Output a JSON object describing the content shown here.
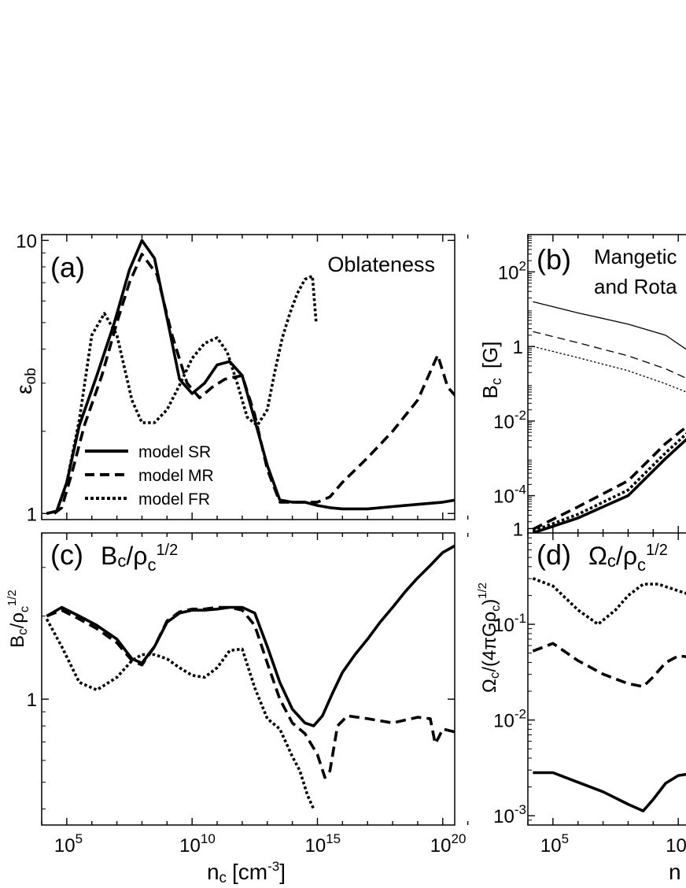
{
  "figure": {
    "xlabel": "n",
    "xlabel_sub": "c",
    "xlabel_unit": "[cm",
    "xlabel_unit_sup": "-3",
    "xlabel_unit_close": "]",
    "xlabel_right_visible": "n",
    "x_tick_base": "10",
    "x_tick_exps": [
      "5",
      "10",
      "15",
      "20"
    ],
    "x_tick_exps_right": [
      "5",
      "10"
    ]
  },
  "legend": [
    {
      "label": "model SR",
      "style": "solid"
    },
    {
      "label": "model MR",
      "style": "dashed"
    },
    {
      "label": "model FR",
      "style": "dotted"
    }
  ],
  "chart_data": [
    {
      "panel": "a",
      "type": "line",
      "panel_label": "(a)",
      "title": "Oblateness",
      "ylabel": "ε",
      "ylabel_sub": "ob",
      "xscale": "log",
      "yscale": "log",
      "xlim": [
        10000.0,
        3e+20
      ],
      "ylim": [
        0.95,
        10.5
      ],
      "yticks": [
        {
          "v": 1,
          "label": "1"
        },
        {
          "v": 10,
          "label": "10"
        }
      ],
      "series": [
        {
          "name": "model SR",
          "style": "solid",
          "logx": [
            4.2,
            4.6,
            5.0,
            5.5,
            6.2,
            6.9,
            7.5,
            8.0,
            8.5,
            9.0,
            9.5,
            10.0,
            10.5,
            11.0,
            11.5,
            12.0,
            12.5,
            13.0,
            13.5,
            14.0,
            14.5,
            15.0,
            15.5,
            16.0,
            17.0,
            18.0,
            19.0,
            20.0,
            20.5
          ],
          "y": [
            1.0,
            1.02,
            1.3,
            2.1,
            3.2,
            5.0,
            7.8,
            10.0,
            8.6,
            5.2,
            3.1,
            2.75,
            3.0,
            3.5,
            3.6,
            3.2,
            2.2,
            1.5,
            1.12,
            1.1,
            1.1,
            1.07,
            1.05,
            1.04,
            1.04,
            1.06,
            1.08,
            1.1,
            1.12
          ]
        },
        {
          "name": "model MR",
          "style": "dashed",
          "logx": [
            4.5,
            4.8,
            5.2,
            5.7,
            6.4,
            7.0,
            7.5,
            8.0,
            8.6,
            9.2,
            9.8,
            10.3,
            10.8,
            11.3,
            12.0,
            12.5,
            13.0,
            13.5,
            14.0,
            14.5,
            15.0,
            15.5,
            16.0,
            17.0,
            18.0,
            19.0,
            19.5,
            19.8,
            20.2,
            20.5
          ],
          "y": [
            1.0,
            1.05,
            1.4,
            2.1,
            3.2,
            5.0,
            7.0,
            8.9,
            7.5,
            4.5,
            3.0,
            2.65,
            2.9,
            3.1,
            3.2,
            2.3,
            1.45,
            1.1,
            1.1,
            1.1,
            1.1,
            1.15,
            1.3,
            1.6,
            2.0,
            2.6,
            3.3,
            3.8,
            2.9,
            2.7
          ]
        },
        {
          "name": "model FR",
          "style": "dotted",
          "logx": [
            4.2,
            4.6,
            5.0,
            5.5,
            6.0,
            6.5,
            7.0,
            7.6,
            8.0,
            8.5,
            9.0,
            9.5,
            10.0,
            10.5,
            11.0,
            11.4,
            11.8,
            12.2,
            12.6,
            13.0,
            13.3,
            13.6,
            13.9,
            14.2,
            14.5,
            14.8,
            14.95
          ],
          "y": [
            1.0,
            1.02,
            1.3,
            2.2,
            4.5,
            5.4,
            4.5,
            2.6,
            2.15,
            2.15,
            2.4,
            2.95,
            3.7,
            4.2,
            4.4,
            3.9,
            3.0,
            2.25,
            2.1,
            2.4,
            3.3,
            4.4,
            5.4,
            6.4,
            7.2,
            7.4,
            5.0
          ]
        }
      ]
    },
    {
      "panel": "b",
      "type": "line",
      "panel_label": "(b)",
      "title": "Mangetic Field Strength",
      "title_visible_line1": "Mangetic",
      "title_visible_line2": "and Rota",
      "ylabel": "B",
      "ylabel_sub": "c",
      "ylabel_unit": "[G]",
      "xscale": "log",
      "yscale": "log",
      "xlim": [
        10000.0,
        3e+20
      ],
      "ylim": [
        1e-05,
        1000.0
      ],
      "yticks": [
        {
          "v": 0.0001,
          "base": "10",
          "exp": "-4"
        },
        {
          "v": 0.01,
          "base": "10",
          "exp": "-2"
        },
        {
          "v": 1,
          "base": "1",
          "exp": ""
        },
        {
          "v": 100,
          "base": "10",
          "exp": "2"
        }
      ],
      "series": [
        {
          "name": "SR thin solid",
          "style": "thin-solid",
          "logx": [
            4.2,
            6,
            8,
            9.5,
            10.8,
            11.5
          ],
          "log10y": [
            1.2,
            0.9,
            0.6,
            0.3,
            -0.3,
            -0.6
          ]
        },
        {
          "name": "MR thin dashed",
          "style": "thin-dashed",
          "logx": [
            4.2,
            6,
            8,
            9.5,
            10.8,
            11.5
          ],
          "log10y": [
            0.4,
            0.1,
            -0.25,
            -0.6,
            -1.0,
            -1.25
          ]
        },
        {
          "name": "FR thin dotted",
          "style": "thin-dotted",
          "logx": [
            4.2,
            6,
            8,
            9.5,
            10.8,
            11.5
          ],
          "log10y": [
            0.0,
            -0.3,
            -0.65,
            -1.0,
            -1.35,
            -1.6
          ]
        },
        {
          "name": "SR thick solid",
          "style": "solid",
          "logx": [
            4.2,
            6,
            8,
            9.5,
            10.8,
            11.5
          ],
          "log10y": [
            -5.0,
            -4.6,
            -4.0,
            -3.0,
            -2.2,
            -1.8
          ]
        },
        {
          "name": "MR thick dashed",
          "style": "dashed",
          "logx": [
            4.2,
            6,
            8,
            9.5,
            10.8,
            11.5
          ],
          "log10y": [
            -4.9,
            -4.3,
            -3.6,
            -2.6,
            -1.9,
            -1.7
          ]
        },
        {
          "name": "FR thick dotted",
          "style": "dotted",
          "logx": [
            4.2,
            6,
            8,
            9.5,
            10.8,
            11.5
          ],
          "log10y": [
            -4.95,
            -4.5,
            -3.85,
            -2.85,
            -2.05,
            -1.75
          ]
        }
      ]
    },
    {
      "panel": "c",
      "type": "line",
      "panel_label": "(c)",
      "title": "B",
      "title_sub": "c",
      "title_mid": "/ρ",
      "title_sub2": "c",
      "title_sup": "1/2",
      "ylabel": "B",
      "ylabel_sub": "c",
      "ylabel_mid": "/ρ",
      "ylabel_sub2": "c",
      "ylabel_sup": "1/2",
      "xscale": "log",
      "yscale": "log",
      "xlim": [
        10000.0,
        3e+20
      ],
      "ylim": [
        0.35,
        4.0
      ],
      "yticks": [
        {
          "v": 1,
          "label": "1"
        }
      ],
      "series": [
        {
          "name": "model SR",
          "style": "solid",
          "logx": [
            4.2,
            4.8,
            5.5,
            6.2,
            7.0,
            7.6,
            8.0,
            8.5,
            9.0,
            9.5,
            10.0,
            10.5,
            11.0,
            11.5,
            12.0,
            12.5,
            13.0,
            13.5,
            14.0,
            14.5,
            14.85,
            15.2,
            15.6,
            16.0,
            16.5,
            17.0,
            17.5,
            18.0,
            18.5,
            19.0,
            19.5,
            20.0,
            20.5
          ],
          "y": [
            2.0,
            2.15,
            2.0,
            1.85,
            1.65,
            1.4,
            1.35,
            1.55,
            1.9,
            2.05,
            2.1,
            2.1,
            2.12,
            2.15,
            2.15,
            2.05,
            1.55,
            1.15,
            0.92,
            0.82,
            0.8,
            0.87,
            1.05,
            1.25,
            1.45,
            1.65,
            1.9,
            2.15,
            2.45,
            2.75,
            3.05,
            3.4,
            3.6
          ]
        },
        {
          "name": "model MR",
          "style": "dashed",
          "logx": [
            4.2,
            4.8,
            5.5,
            6.2,
            7.0,
            7.6,
            8.0,
            8.5,
            9.0,
            9.5,
            10.0,
            10.5,
            11.0,
            11.5,
            12.0,
            12.5,
            13.0,
            13.5,
            14.0,
            14.5,
            15.0,
            15.3,
            15.5,
            15.8,
            16.2,
            17.0,
            18.0,
            19.0,
            19.5,
            19.7,
            19.85,
            20.0,
            20.5
          ],
          "y": [
            2.0,
            2.1,
            1.95,
            1.8,
            1.6,
            1.38,
            1.33,
            1.55,
            1.92,
            2.07,
            2.12,
            2.12,
            2.15,
            2.15,
            2.1,
            1.85,
            1.35,
            1.0,
            0.82,
            0.75,
            0.63,
            0.52,
            0.55,
            0.8,
            0.87,
            0.85,
            0.82,
            0.86,
            0.85,
            0.69,
            0.73,
            0.78,
            0.76
          ]
        },
        {
          "name": "model FR",
          "style": "dotted",
          "logx": [
            4.2,
            4.8,
            5.5,
            6.2,
            7.0,
            7.6,
            8.0,
            8.5,
            9.0,
            9.5,
            10.0,
            10.5,
            11.0,
            11.5,
            12.0,
            12.5,
            13.0,
            13.5,
            14.0,
            14.3,
            14.6,
            14.85
          ],
          "y": [
            1.95,
            1.55,
            1.15,
            1.08,
            1.2,
            1.38,
            1.45,
            1.45,
            1.4,
            1.3,
            1.22,
            1.2,
            1.3,
            1.5,
            1.52,
            1.1,
            0.85,
            0.78,
            0.62,
            0.55,
            0.45,
            0.4
          ]
        }
      ]
    },
    {
      "panel": "d",
      "type": "line",
      "panel_label": "(d)",
      "title": "Ω",
      "title_sub": "c",
      "title_mid": "/ρ",
      "title_sub2": "c",
      "title_sup": "1/2",
      "ylabel": "Ω",
      "ylabel_sub": "c",
      "ylabel_mid": "/(4πGρ",
      "ylabel_sub2": "c",
      "ylabel_close": ")",
      "ylabel_sup": "1/2",
      "xscale": "log",
      "yscale": "log",
      "xlim": [
        10000.0,
        3e+20
      ],
      "ylim": [
        0.0008,
        0.9
      ],
      "yticks": [
        {
          "v": 0.001,
          "base": "10",
          "exp": "-3"
        },
        {
          "v": 0.01,
          "base": "10",
          "exp": "-2"
        },
        {
          "v": 0.1,
          "base": "10",
          "exp": "-1"
        },
        {
          "v": 1,
          "base": "1",
          "exp": ""
        }
      ],
      "series": [
        {
          "name": "model SR",
          "style": "solid",
          "logx": [
            4.2,
            5.0,
            6.0,
            7.0,
            8.0,
            8.6,
            9.0,
            9.5,
            10.0,
            10.8,
            11.5
          ],
          "log10y": [
            -2.55,
            -2.55,
            -2.65,
            -2.75,
            -2.88,
            -2.95,
            -2.83,
            -2.66,
            -2.58,
            -2.55,
            -2.55
          ]
        },
        {
          "name": "model MR",
          "style": "dashed",
          "logx": [
            4.2,
            5.0,
            6.0,
            7.0,
            8.0,
            8.6,
            9.0,
            9.5,
            10.0,
            10.8,
            11.5
          ],
          "log10y": [
            -1.28,
            -1.2,
            -1.38,
            -1.52,
            -1.62,
            -1.65,
            -1.55,
            -1.4,
            -1.33,
            -1.35,
            -1.37
          ]
        },
        {
          "name": "model FR",
          "style": "dotted",
          "logx": [
            4.2,
            5.0,
            6.0,
            6.8,
            7.5,
            8.0,
            8.6,
            9.2,
            10.0,
            10.8,
            11.5
          ],
          "log10y": [
            -0.52,
            -0.6,
            -0.85,
            -1.0,
            -0.85,
            -0.7,
            -0.58,
            -0.58,
            -0.65,
            -0.72,
            -0.76
          ]
        }
      ]
    }
  ]
}
